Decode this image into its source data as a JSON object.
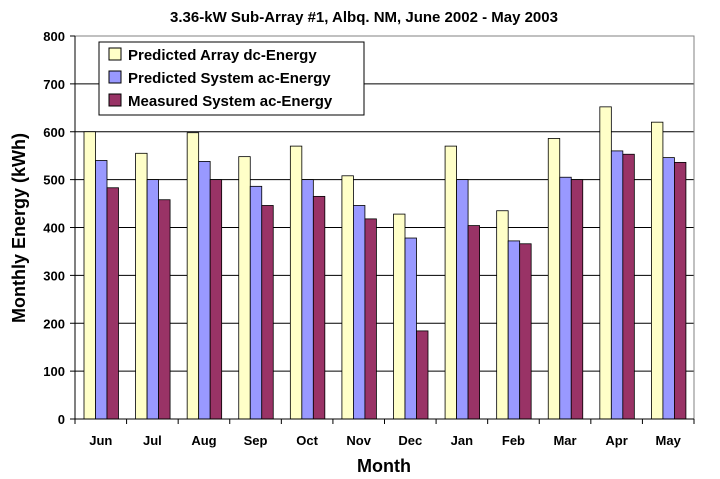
{
  "chart_data": {
    "type": "bar",
    "title": "3.36-kW Sub-Array #1, Albq. NM, June 2002 - May 2003",
    "xlabel": "Month",
    "ylabel": "Monthly Energy (kWh)",
    "ylim": [
      0,
      800
    ],
    "yticks": [
      0,
      100,
      200,
      300,
      400,
      500,
      600,
      700,
      800
    ],
    "grid": "horizontal",
    "legend_position": "top-left",
    "categories": [
      "Jun",
      "Jul",
      "Aug",
      "Sep",
      "Oct",
      "Nov",
      "Dec",
      "Jan",
      "Feb",
      "Mar",
      "Apr",
      "May"
    ],
    "series": [
      {
        "name": "Predicted Array dc-Energy",
        "color": "#ffffc8",
        "values": [
          600,
          555,
          598,
          548,
          570,
          508,
          428,
          570,
          435,
          586,
          652,
          620
        ]
      },
      {
        "name": "Predicted System ac-Energy",
        "color": "#9999ff",
        "values": [
          540,
          500,
          538,
          486,
          500,
          446,
          378,
          500,
          372,
          505,
          560,
          546
        ]
      },
      {
        "name": "Measured System ac-Energy",
        "color": "#993366",
        "values": [
          483,
          458,
          500,
          446,
          465,
          418,
          184,
          404,
          366,
          500,
          553,
          536
        ]
      }
    ]
  }
}
